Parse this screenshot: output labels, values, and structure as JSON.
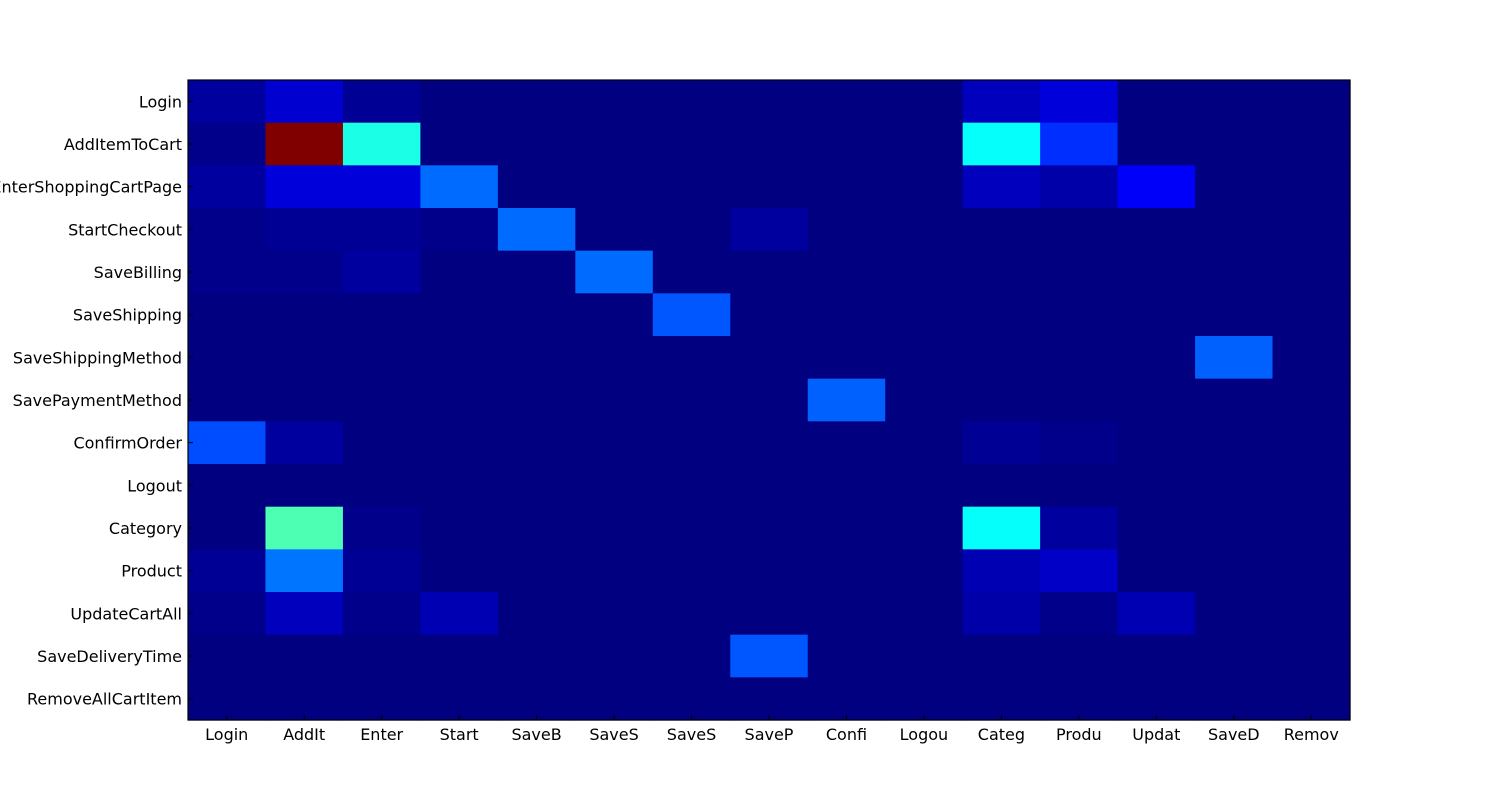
{
  "chart_data": {
    "type": "heatmap",
    "title": "",
    "xlabel": "",
    "ylabel": "",
    "colormap": "jet",
    "color_range": [
      0,
      1
    ],
    "x_tick_labels": [
      "Login",
      "AddIt",
      "Enter",
      "Start",
      "SaveB",
      "SaveS",
      "SaveS",
      "SaveP",
      "Confi",
      "Logou",
      "Categ",
      "Produ",
      "Updat",
      "SaveD",
      "Remov"
    ],
    "y_tick_labels": [
      "Login",
      "AddItemToCart",
      "EnterShoppingCartPage",
      "StartCheckout",
      "SaveBilling",
      "SaveShipping",
      "SaveShippingMethod",
      "SavePaymentMethod",
      "ConfirmOrder",
      "Logout",
      "Category",
      "Product",
      "UpdateCartAll",
      "SaveDeliveryTime",
      "RemoveAllCartItem"
    ],
    "values": [
      [
        0.03,
        0.08,
        0.02,
        0,
        0,
        0,
        0,
        0,
        0,
        0,
        0.06,
        0.09,
        0,
        0,
        0
      ],
      [
        0.01,
        1.0,
        0.4,
        0,
        0,
        0,
        0,
        0,
        0,
        0,
        0.38,
        0.17,
        0,
        0,
        0
      ],
      [
        0.03,
        0.09,
        0.09,
        0.23,
        0,
        0,
        0,
        0,
        0,
        0,
        0.06,
        0.04,
        0.12,
        0,
        0
      ],
      [
        0.01,
        0.02,
        0.02,
        0.01,
        0.23,
        0,
        0,
        0.03,
        0,
        0,
        0,
        0,
        0,
        0,
        0
      ],
      [
        0.01,
        0.01,
        0.03,
        0,
        0,
        0.23,
        0,
        0,
        0,
        0,
        0,
        0,
        0,
        0,
        0
      ],
      [
        0,
        0,
        0,
        0,
        0,
        0,
        0.21,
        0,
        0,
        0,
        0,
        0,
        0,
        0,
        0
      ],
      [
        0,
        0,
        0,
        0,
        0,
        0,
        0,
        0,
        0,
        0,
        0,
        0,
        0,
        0.22,
        0
      ],
      [
        0,
        0,
        0,
        0,
        0,
        0,
        0,
        0,
        0.22,
        0,
        0,
        0,
        0,
        0,
        0
      ],
      [
        0.2,
        0.03,
        0,
        0,
        0,
        0,
        0,
        0,
        0,
        0,
        0.02,
        0.01,
        0,
        0,
        0
      ],
      [
        0,
        0,
        0,
        0,
        0,
        0,
        0,
        0,
        0,
        0,
        0,
        0,
        0,
        0,
        0
      ],
      [
        0,
        0.45,
        0.01,
        0,
        0,
        0,
        0,
        0,
        0,
        0,
        0.38,
        0.03,
        0,
        0,
        0
      ],
      [
        0.02,
        0.24,
        0.02,
        0,
        0,
        0,
        0,
        0,
        0,
        0,
        0.05,
        0.07,
        0,
        0,
        0
      ],
      [
        0.01,
        0.06,
        0.01,
        0.05,
        0,
        0,
        0,
        0,
        0,
        0,
        0.04,
        0.01,
        0.05,
        0,
        0
      ],
      [
        0,
        0,
        0,
        0,
        0,
        0,
        0,
        0.21,
        0,
        0,
        0,
        0,
        0,
        0,
        0
      ],
      [
        0,
        0,
        0,
        0,
        0,
        0,
        0,
        0,
        0,
        0,
        0,
        0,
        0,
        0,
        0
      ]
    ]
  }
}
